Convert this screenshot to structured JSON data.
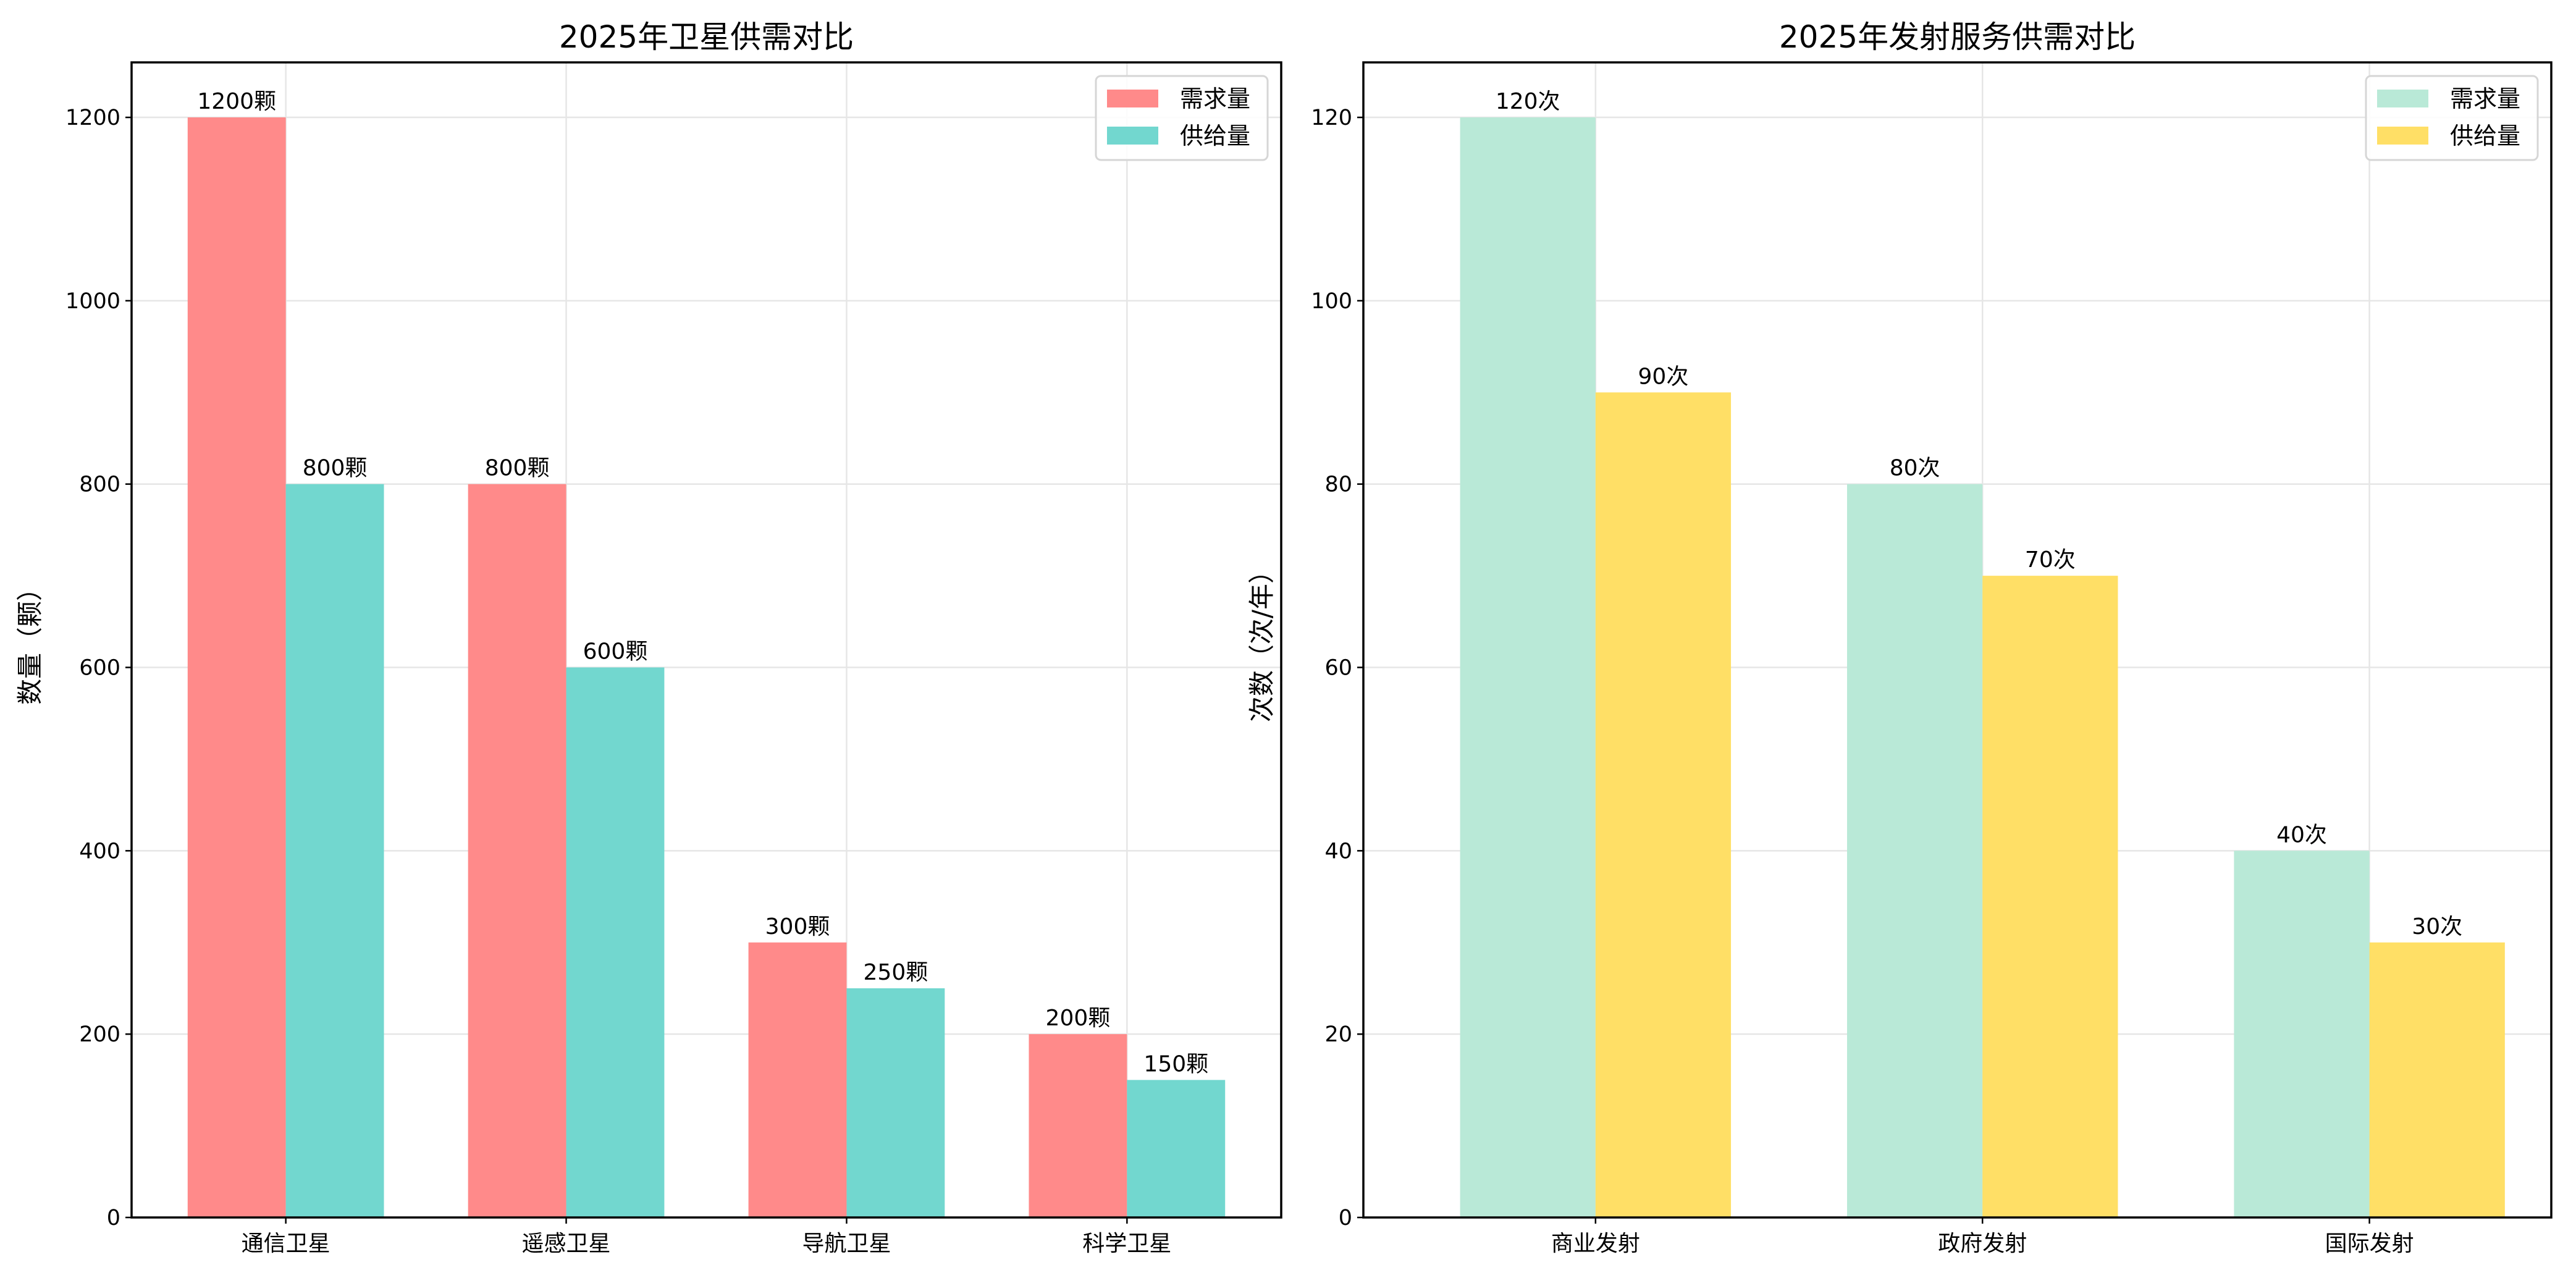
{
  "chart_data": [
    {
      "type": "bar",
      "title": "2025年卫星供需对比",
      "xlabel": "",
      "ylabel": "数量（颗）",
      "categories": [
        "通信卫星",
        "遥感卫星",
        "导航卫星",
        "科学卫星"
      ],
      "series": [
        {
          "name": "需求量",
          "values": [
            1200,
            800,
            300,
            200
          ],
          "color": "#ff8a8a"
        },
        {
          "name": "供给量",
          "values": [
            800,
            600,
            250,
            150
          ],
          "color": "#72d7cf"
        }
      ],
      "unit_suffix": "颗",
      "ylim": [
        0,
        1260
      ],
      "yticks": [
        0,
        200,
        400,
        600,
        800,
        1000,
        1200
      ],
      "xlim": [
        -0.55,
        3.55
      ],
      "grid": true,
      "legend": "top-right"
    },
    {
      "type": "bar",
      "title": "2025年发射服务供需对比",
      "xlabel": "",
      "ylabel": "次数（次/年）",
      "categories": [
        "商业发射",
        "政府发射",
        "国际发射"
      ],
      "series": [
        {
          "name": "需求量",
          "values": [
            120,
            80,
            40
          ],
          "color": "#b9e9d7"
        },
        {
          "name": "供给量",
          "values": [
            90,
            70,
            30
          ],
          "color": "#ffdf66"
        }
      ],
      "unit_suffix": "次",
      "ylim": [
        0,
        126
      ],
      "yticks": [
        0,
        20,
        40,
        60,
        80,
        100,
        120
      ],
      "xlim": [
        -0.6,
        2.47
      ],
      "grid": true,
      "legend": "top-right"
    }
  ]
}
